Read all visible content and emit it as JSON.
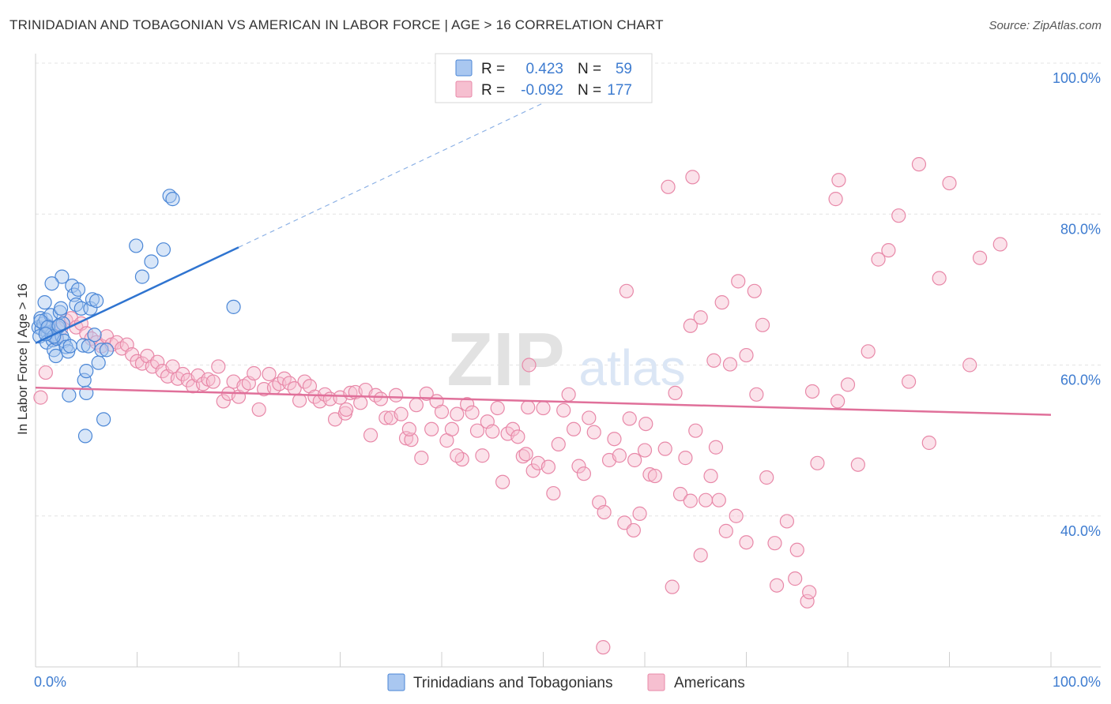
{
  "title": "TRINIDADIAN AND TOBAGONIAN VS AMERICAN IN LABOR FORCE | AGE > 16 CORRELATION CHART",
  "source": "Source: ZipAtlas.com",
  "colors": {
    "blue_fill": "#a9c7f0",
    "blue_stroke": "#4a86d6",
    "blue_line": "#2f74d0",
    "pink_fill": "#f6bfd0",
    "pink_stroke": "#e888a8",
    "pink_line": "#e0709a",
    "axis_text": "#3e7cd0",
    "grid": "#e4e4e4"
  },
  "chart_data": {
    "type": "scatter",
    "title": "TRINIDADIAN AND TOBAGONIAN VS AMERICAN IN LABOR FORCE | AGE > 16 CORRELATION CHART",
    "xlabel": "",
    "ylabel": "In Labor Force | Age > 16",
    "xlim": [
      0,
      100
    ],
    "ylim": [
      20,
      100
    ],
    "x_tick_labels": [
      "0.0%",
      "100.0%"
    ],
    "y_ticks": [
      40,
      60,
      80,
      100
    ],
    "y_tick_labels": [
      "40.0%",
      "60.0%",
      "80.0%",
      "100.0%"
    ],
    "watermark": {
      "main": "ZIP",
      "sub": "atlas"
    },
    "legend": [
      {
        "r_label": "R =",
        "r_value": "0.423",
        "n_label": "N =",
        "n_value": "59"
      },
      {
        "r_label": "R =",
        "r_value": "-0.092",
        "n_label": "N =",
        "n_value": "177"
      }
    ],
    "series": [
      {
        "name": "Trinidadians and Tobagonians",
        "color": "#4a86d6",
        "trend": {
          "x0": 0,
          "y0": 62.9,
          "x1": 20,
          "y1": 75.6,
          "dash_to_x": 55,
          "dash_to_y": 97.9
        },
        "points": [
          [
            0.3,
            65.0
          ],
          [
            0.5,
            66.2
          ],
          [
            0.6,
            64.8
          ],
          [
            0.8,
            65.5
          ],
          [
            1.0,
            66.0
          ],
          [
            1.2,
            64.2
          ],
          [
            0.4,
            63.8
          ],
          [
            0.9,
            68.3
          ],
          [
            1.1,
            63.0
          ],
          [
            1.3,
            65.1
          ],
          [
            1.5,
            66.6
          ],
          [
            1.6,
            64.0
          ],
          [
            1.7,
            63.3
          ],
          [
            1.8,
            62.0
          ],
          [
            2.0,
            61.2
          ],
          [
            2.1,
            63.5
          ],
          [
            2.2,
            65.0
          ],
          [
            2.4,
            67.0
          ],
          [
            2.5,
            67.5
          ],
          [
            2.6,
            63.8
          ],
          [
            2.7,
            65.5
          ],
          [
            2.8,
            63.2
          ],
          [
            3.0,
            62.4
          ],
          [
            3.2,
            61.8
          ],
          [
            3.4,
            62.5
          ],
          [
            3.6,
            70.5
          ],
          [
            3.8,
            69.3
          ],
          [
            4.0,
            68.0
          ],
          [
            4.2,
            70.0
          ],
          [
            4.5,
            67.5
          ],
          [
            4.7,
            62.6
          ],
          [
            4.8,
            58.0
          ],
          [
            5.0,
            56.3
          ],
          [
            5.2,
            62.5
          ],
          [
            5.4,
            67.5
          ],
          [
            5.6,
            68.7
          ],
          [
            5.8,
            64.0
          ],
          [
            6.0,
            68.5
          ],
          [
            6.2,
            60.3
          ],
          [
            5.0,
            59.2
          ],
          [
            6.5,
            62.0
          ],
          [
            6.7,
            52.8
          ],
          [
            7.0,
            62.0
          ],
          [
            2.6,
            71.7
          ],
          [
            1.6,
            70.8
          ],
          [
            3.3,
            56.0
          ],
          [
            4.9,
            50.6
          ],
          [
            9.9,
            75.8
          ],
          [
            10.5,
            71.7
          ],
          [
            11.4,
            73.7
          ],
          [
            12.6,
            75.3
          ],
          [
            13.2,
            82.4
          ],
          [
            13.5,
            82.0
          ],
          [
            19.5,
            67.7
          ],
          [
            0.5,
            65.8
          ],
          [
            1.2,
            65.0
          ],
          [
            1.8,
            63.8
          ],
          [
            2.3,
            65.2
          ],
          [
            1.0,
            64.1
          ]
        ]
      },
      {
        "name": "Americans",
        "color": "#e888a8",
        "trend": {
          "x0": 0,
          "y0": 57.0,
          "x1": 100,
          "y1": 53.4
        },
        "points": [
          [
            0.5,
            55.7
          ],
          [
            1.0,
            59.0
          ],
          [
            1.5,
            65.0
          ],
          [
            2.0,
            63.5
          ],
          [
            2.5,
            64.8
          ],
          [
            3.0,
            65.9
          ],
          [
            3.5,
            66.2
          ],
          [
            4.0,
            65.0
          ],
          [
            4.5,
            65.5
          ],
          [
            5.0,
            64.2
          ],
          [
            5.5,
            63.5
          ],
          [
            6.0,
            63.0
          ],
          [
            6.5,
            62.5
          ],
          [
            7.0,
            63.8
          ],
          [
            7.5,
            62.7
          ],
          [
            8.0,
            63.0
          ],
          [
            8.5,
            62.2
          ],
          [
            9.0,
            62.7
          ],
          [
            9.5,
            61.4
          ],
          [
            10.0,
            60.5
          ],
          [
            10.5,
            60.2
          ],
          [
            11.0,
            61.2
          ],
          [
            11.5,
            59.8
          ],
          [
            12.0,
            60.4
          ],
          [
            12.5,
            59.2
          ],
          [
            13.0,
            58.5
          ],
          [
            13.5,
            59.8
          ],
          [
            14.0,
            58.2
          ],
          [
            14.5,
            58.8
          ],
          [
            15.0,
            58.0
          ],
          [
            15.5,
            57.2
          ],
          [
            16.0,
            58.6
          ],
          [
            16.5,
            57.5
          ],
          [
            17.0,
            58.1
          ],
          [
            17.5,
            57.8
          ],
          [
            18.0,
            59.8
          ],
          [
            18.5,
            55.2
          ],
          [
            19.0,
            56.2
          ],
          [
            19.5,
            57.8
          ],
          [
            20.0,
            55.8
          ],
          [
            20.5,
            57.2
          ],
          [
            21.0,
            57.6
          ],
          [
            21.5,
            58.9
          ],
          [
            22.0,
            54.1
          ],
          [
            22.5,
            56.8
          ],
          [
            23.0,
            58.8
          ],
          [
            23.5,
            57.0
          ],
          [
            24.0,
            57.5
          ],
          [
            24.5,
            58.2
          ],
          [
            25.0,
            57.6
          ],
          [
            25.5,
            56.9
          ],
          [
            26.0,
            55.3
          ],
          [
            26.5,
            57.8
          ],
          [
            27.0,
            57.2
          ],
          [
            27.5,
            55.8
          ],
          [
            28.0,
            55.2
          ],
          [
            28.5,
            56.1
          ],
          [
            29.0,
            55.5
          ],
          [
            29.5,
            52.8
          ],
          [
            30.0,
            55.7
          ],
          [
            30.5,
            53.6
          ],
          [
            31.0,
            56.3
          ],
          [
            31.5,
            56.4
          ],
          [
            32.0,
            55.0
          ],
          [
            32.5,
            56.7
          ],
          [
            33.0,
            50.7
          ],
          [
            33.5,
            56.0
          ],
          [
            34.0,
            55.5
          ],
          [
            34.5,
            53.0
          ],
          [
            35.0,
            53.0
          ],
          [
            35.5,
            56.0
          ],
          [
            36.0,
            53.5
          ],
          [
            36.5,
            50.3
          ],
          [
            37.0,
            50.1
          ],
          [
            37.5,
            54.7
          ],
          [
            38.0,
            47.7
          ],
          [
            38.5,
            56.2
          ],
          [
            39.0,
            51.5
          ],
          [
            39.5,
            55.2
          ],
          [
            40.0,
            53.8
          ],
          [
            40.5,
            50.0
          ],
          [
            41.0,
            51.5
          ],
          [
            41.5,
            53.5
          ],
          [
            42.0,
            47.5
          ],
          [
            42.5,
            54.8
          ],
          [
            43.0,
            53.7
          ],
          [
            43.5,
            51.3
          ],
          [
            44.0,
            48.0
          ],
          [
            44.5,
            52.5
          ],
          [
            45.0,
            51.2
          ],
          [
            45.5,
            54.3
          ],
          [
            46.0,
            44.5
          ],
          [
            46.5,
            50.9
          ],
          [
            47.0,
            51.5
          ],
          [
            47.5,
            50.5
          ],
          [
            48.0,
            47.9
          ],
          [
            48.5,
            54.4
          ],
          [
            49.0,
            46.0
          ],
          [
            49.5,
            47.0
          ],
          [
            50.0,
            54.3
          ],
          [
            50.5,
            46.5
          ],
          [
            51.0,
            43.0
          ],
          [
            51.5,
            49.5
          ],
          [
            52.0,
            54.0
          ],
          [
            52.5,
            56.1
          ],
          [
            53.0,
            51.5
          ],
          [
            53.5,
            46.6
          ],
          [
            54.0,
            45.6
          ],
          [
            54.5,
            53.0
          ],
          [
            55.0,
            51.1
          ],
          [
            55.5,
            41.8
          ],
          [
            56.0,
            40.5
          ],
          [
            56.5,
            47.4
          ],
          [
            57.0,
            50.2
          ],
          [
            57.5,
            48.0
          ],
          [
            58.0,
            39.1
          ],
          [
            58.5,
            52.9
          ],
          [
            59.0,
            47.4
          ],
          [
            59.5,
            40.3
          ],
          [
            60.0,
            48.7
          ],
          [
            60.5,
            45.5
          ],
          [
            61.0,
            45.3
          ],
          [
            62.0,
            48.9
          ],
          [
            63.0,
            56.3
          ],
          [
            63.5,
            42.9
          ],
          [
            64.0,
            47.7
          ],
          [
            64.5,
            42.0
          ],
          [
            65.0,
            51.3
          ],
          [
            65.5,
            34.8
          ],
          [
            66.0,
            42.1
          ],
          [
            66.5,
            45.3
          ],
          [
            67.0,
            49.1
          ],
          [
            68.0,
            38.0
          ],
          [
            69.0,
            40.0
          ],
          [
            70.0,
            36.5
          ],
          [
            71.0,
            56.1
          ],
          [
            72.0,
            45.1
          ],
          [
            73.0,
            30.8
          ],
          [
            74.0,
            39.3
          ],
          [
            75.0,
            35.5
          ],
          [
            76.0,
            28.7
          ],
          [
            76.5,
            56.5
          ],
          [
            77.0,
            47.0
          ],
          [
            79.0,
            55.2
          ],
          [
            80.0,
            57.4
          ],
          [
            81.0,
            46.8
          ],
          [
            82.0,
            61.8
          ],
          [
            83.0,
            74.0
          ],
          [
            84.0,
            75.2
          ],
          [
            85.0,
            79.8
          ],
          [
            86.0,
            57.8
          ],
          [
            87.0,
            86.6
          ],
          [
            88.0,
            49.7
          ],
          [
            89.0,
            71.5
          ],
          [
            90.0,
            84.1
          ],
          [
            92.0,
            60.0
          ],
          [
            93.0,
            74.2
          ],
          [
            95.0,
            76.0
          ],
          [
            64.5,
            65.2
          ],
          [
            65.5,
            66.3
          ],
          [
            66.8,
            60.6
          ],
          [
            67.6,
            68.3
          ],
          [
            68.4,
            60.1
          ],
          [
            69.2,
            71.1
          ],
          [
            70.0,
            61.3
          ],
          [
            70.8,
            69.8
          ],
          [
            71.6,
            65.3
          ],
          [
            72.8,
            36.4
          ],
          [
            74.8,
            31.7
          ],
          [
            76.2,
            29.9
          ],
          [
            62.3,
            83.6
          ],
          [
            64.7,
            84.9
          ],
          [
            78.8,
            82.0
          ],
          [
            79.1,
            84.5
          ],
          [
            30.6,
            54.1
          ],
          [
            36.8,
            51.5
          ],
          [
            41.5,
            48.0
          ],
          [
            48.3,
            48.2
          ],
          [
            58.9,
            38.1
          ],
          [
            60.1,
            52.2
          ],
          [
            62.7,
            30.6
          ],
          [
            55.9,
            22.6
          ],
          [
            48.6,
            60.0
          ],
          [
            58.2,
            69.8
          ],
          [
            67.3,
            42.1
          ]
        ]
      }
    ]
  },
  "legend_bottom": [
    {
      "label": "Trinidadians and Tobagonians"
    },
    {
      "label": "Americans"
    }
  ]
}
